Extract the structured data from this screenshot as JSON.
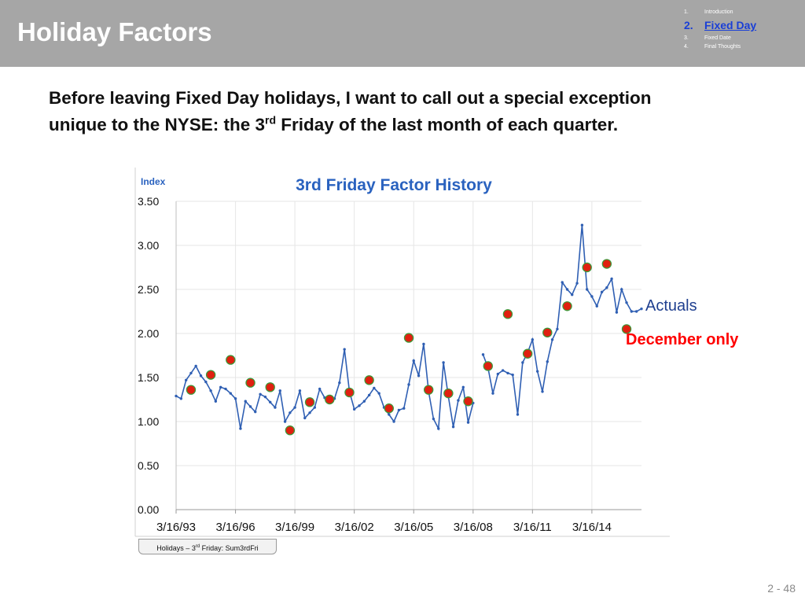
{
  "header": {
    "title": "Holiday Factors",
    "nav": [
      {
        "num": "1.",
        "label": "Introduction",
        "active": false
      },
      {
        "num": "2.",
        "label": "Fixed Day",
        "active": true
      },
      {
        "num": "3.",
        "label": "Fixed Date",
        "active": false
      },
      {
        "num": "4.",
        "label": "Final Thoughts",
        "active": false
      }
    ]
  },
  "intro": {
    "line1": "Before leaving Fixed Day holidays, I want to call out a special exception",
    "line2_pre": "unique to the NYSE: the 3",
    "line2_sup": "rd",
    "line2_post": " Friday of the last month of each quarter."
  },
  "source": {
    "pre": "Holidays – 3",
    "sup": "rd",
    "post": " Friday:  Sum3rdFri"
  },
  "page_number": "2 -  48",
  "chart_data": {
    "type": "line",
    "title": "3rd Friday Factor History",
    "ylabel": "Index",
    "xlabel": "",
    "ylim": [
      0,
      3.5
    ],
    "yticks": [
      "0.00",
      "0.50",
      "1.00",
      "1.50",
      "2.00",
      "2.50",
      "3.00",
      "3.50"
    ],
    "xlim": [
      "1993-03-16",
      "2016-09-16"
    ],
    "xticks": [
      "3/16/93",
      "3/16/96",
      "3/16/99",
      "3/16/02",
      "3/16/05",
      "3/16/08",
      "3/16/11",
      "3/16/14"
    ],
    "colors": {
      "actuals": "#2f5fb3",
      "december": "#e02010",
      "december_outline": "#3a9a3a",
      "title": "#2a62bf",
      "december_label": "#ff0000"
    },
    "series": [
      {
        "name": "Actuals",
        "x": [
          "1993-03-16",
          "1993-06-16",
          "1993-09-16",
          "1993-12-16",
          "1994-03-16",
          "1994-06-16",
          "1994-09-16",
          "1994-12-16",
          "1995-03-16",
          "1995-06-16",
          "1995-09-16",
          "1995-12-16",
          "1996-03-16",
          "1996-06-16",
          "1996-09-16",
          "1996-12-16",
          "1997-03-16",
          "1997-06-16",
          "1997-09-16",
          "1997-12-16",
          "1998-03-16",
          "1998-06-16",
          "1998-09-16",
          "1998-12-16",
          "1999-03-16",
          "1999-06-16",
          "1999-09-16",
          "1999-12-16",
          "2000-03-16",
          "2000-06-16",
          "2000-09-16",
          "2000-12-16",
          "2001-03-16",
          "2001-06-16",
          "2001-09-16",
          "2001-12-16",
          "2002-03-16",
          "2002-06-16",
          "2002-09-16",
          "2002-12-16",
          "2003-03-16",
          "2003-06-16",
          "2003-09-16",
          "2003-12-16",
          "2004-03-16",
          "2004-06-16",
          "2004-09-16",
          "2004-12-16",
          "2005-03-16",
          "2005-06-16",
          "2005-09-16",
          "2005-12-16",
          "2006-03-16",
          "2006-06-16",
          "2006-09-16",
          "2006-12-16",
          "2007-03-16",
          "2007-06-16",
          "2007-09-16",
          "2007-12-16",
          "2008-03-16",
          "2008-09-16",
          "2008-12-16",
          "2009-03-16",
          "2009-06-16",
          "2009-09-16",
          "2009-12-16",
          "2010-03-16",
          "2010-06-16",
          "2010-09-16",
          "2010-12-16",
          "2011-03-16",
          "2011-06-16",
          "2011-09-16",
          "2011-12-16",
          "2012-03-16",
          "2012-06-16",
          "2012-09-16",
          "2012-12-16",
          "2013-03-16",
          "2013-06-16",
          "2013-09-16",
          "2013-12-16",
          "2014-03-16",
          "2014-06-16",
          "2014-09-16",
          "2014-12-16",
          "2015-03-16",
          "2015-06-16",
          "2015-09-16",
          "2015-12-16",
          "2016-03-16",
          "2016-06-16",
          "2016-09-16"
        ],
        "values": [
          1.29,
          1.26,
          1.47,
          1.55,
          1.63,
          1.52,
          1.45,
          1.35,
          1.23,
          1.39,
          1.37,
          1.32,
          1.26,
          0.92,
          1.23,
          1.17,
          1.11,
          1.31,
          1.28,
          1.22,
          1.16,
          1.35,
          1.0,
          1.1,
          1.16,
          1.35,
          1.04,
          1.1,
          1.16,
          1.37,
          1.27,
          1.26,
          1.26,
          1.44,
          1.82,
          1.34,
          1.14,
          1.18,
          1.23,
          1.3,
          1.38,
          1.32,
          1.16,
          1.08,
          1.0,
          1.13,
          1.15,
          1.42,
          1.69,
          1.52,
          1.88,
          1.34,
          1.03,
          0.92,
          1.67,
          1.28,
          0.94,
          1.24,
          1.39,
          0.99,
          1.21,
          1.76,
          1.61,
          1.32,
          1.54,
          1.58,
          1.55,
          1.53,
          1.08,
          1.67,
          1.78,
          1.93,
          1.57,
          1.34,
          1.68,
          1.93,
          2.05,
          2.58,
          2.5,
          2.44,
          2.57,
          3.23,
          2.5,
          2.42,
          2.31,
          2.47,
          2.52,
          2.62,
          2.24,
          2.5,
          2.35,
          2.25,
          2.25,
          2.28
        ]
      },
      {
        "name": "December only",
        "x": [
          "1993-12-16",
          "1994-12-16",
          "1995-12-16",
          "1996-12-16",
          "1997-12-16",
          "1998-12-16",
          "1999-12-16",
          "2000-12-16",
          "2001-12-16",
          "2002-12-16",
          "2003-12-16",
          "2004-12-16",
          "2005-12-16",
          "2006-12-16",
          "2007-12-16",
          "2008-12-16",
          "2009-12-16",
          "2010-12-16",
          "2011-12-16",
          "2012-12-16",
          "2013-12-16",
          "2014-12-16",
          "2015-12-16"
        ],
        "values": [
          1.36,
          1.53,
          1.7,
          1.44,
          1.39,
          0.9,
          1.22,
          1.25,
          1.33,
          1.47,
          1.15,
          1.95,
          1.36,
          1.32,
          1.23,
          1.63,
          2.22,
          1.77,
          2.01,
          2.31,
          2.75,
          2.79,
          2.05
        ]
      }
    ],
    "legend": "right"
  }
}
